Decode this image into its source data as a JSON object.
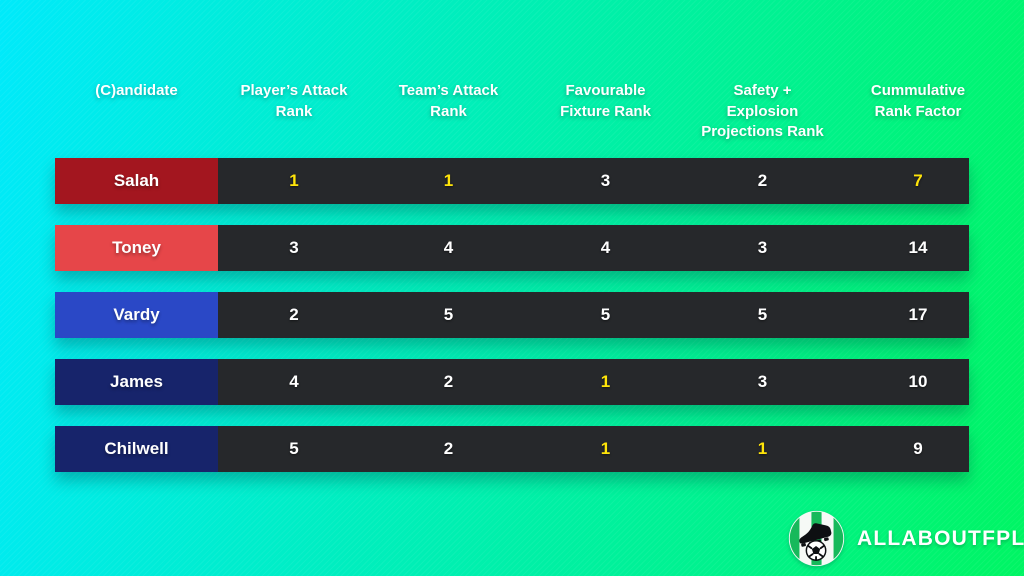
{
  "chart_data": {
    "type": "table",
    "columns": [
      "(C)andidate",
      "Player’s Attack\nRank",
      "Team’s Attack\nRank",
      "Favourable\nFixture Rank",
      "Safety +\nExplosion\nProjections Rank",
      "Cummulative\nRank Factor"
    ],
    "rows": [
      {
        "candidate": "Salah",
        "label_color": "#a3161f",
        "values": [
          1,
          1,
          3,
          2,
          7
        ],
        "highlighted": [
          true,
          true,
          false,
          false,
          true
        ]
      },
      {
        "candidate": "Toney",
        "label_color": "#e64649",
        "values": [
          3,
          4,
          4,
          3,
          14
        ],
        "highlighted": [
          false,
          false,
          false,
          false,
          false
        ]
      },
      {
        "candidate": "Vardy",
        "label_color": "#2a48c6",
        "values": [
          2,
          5,
          5,
          5,
          17
        ],
        "highlighted": [
          false,
          false,
          false,
          false,
          false
        ]
      },
      {
        "candidate": "James",
        "label_color": "#17246b",
        "values": [
          4,
          2,
          1,
          3,
          10
        ],
        "highlighted": [
          false,
          false,
          true,
          false,
          false
        ]
      },
      {
        "candidate": "Chilwell",
        "label_color": "#17246b",
        "values": [
          5,
          2,
          1,
          1,
          9
        ],
        "highlighted": [
          false,
          false,
          true,
          true,
          false
        ]
      }
    ]
  },
  "colors": {
    "background_gradient_start": "#00eafb",
    "background_gradient_end": "#00f563",
    "cell_background": "#26282b",
    "highlight_text": "#ffe40a",
    "header_text": "#ffffff"
  },
  "branding": {
    "name": "ALLABOUTFPL",
    "icon": "football-boot-ball-badge-icon"
  }
}
